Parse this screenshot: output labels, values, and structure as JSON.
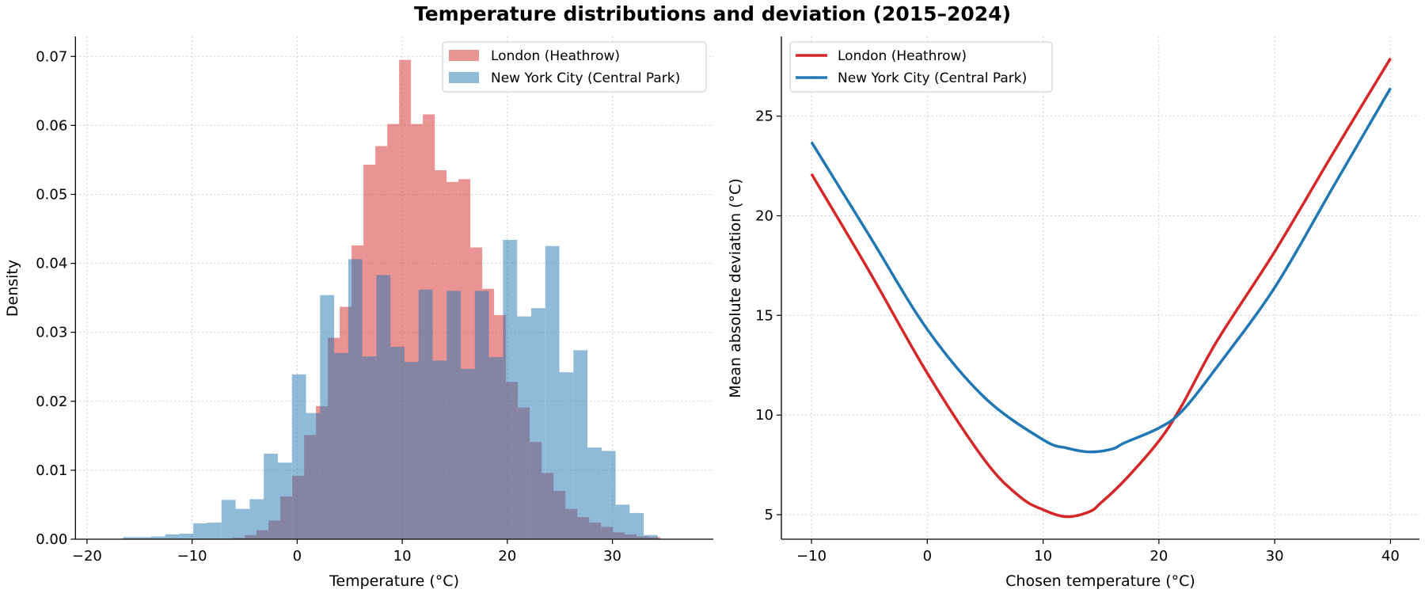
{
  "title": "Temperature distributions and deviation  (2015–2024)",
  "colors": {
    "london_hist": "#d62728",
    "nyc_hist": "#1f77b4",
    "london_line": "#d62728",
    "nyc_line": "#1f77b4"
  },
  "chart_data": [
    {
      "type": "bar",
      "subtype": "histogram",
      "xlabel": "Temperature (°C)",
      "ylabel": "Density",
      "xlim": [
        -21.1,
        39.6
      ],
      "ylim": [
        0,
        0.0729
      ],
      "xticks": [
        -20,
        -10,
        0,
        10,
        20,
        30
      ],
      "yticks": [
        "0.00",
        "0.01",
        "0.02",
        "0.03",
        "0.04",
        "0.05",
        "0.06",
        "0.07"
      ],
      "grid": true,
      "legend": "top-right",
      "opacity": 0.5,
      "series": [
        {
          "name": "London (Heathrow)",
          "bin_width": 1.131,
          "bin_starts": [
            -6.12,
            -4.99,
            -3.86,
            -2.73,
            -1.6,
            -0.47,
            0.66,
            1.79,
            2.92,
            4.05,
            5.18,
            6.31,
            7.44,
            8.57,
            9.7,
            10.83,
            11.96,
            13.09,
            14.22,
            15.35,
            16.48,
            17.61,
            18.74,
            19.87,
            21.0,
            22.14,
            23.27,
            24.4,
            25.53,
            26.66,
            27.79,
            28.92,
            30.05,
            31.18,
            32.31,
            33.44
          ],
          "values": [
            0.0002,
            0.0006,
            0.0013,
            0.0027,
            0.0062,
            0.0092,
            0.0151,
            0.0193,
            0.0292,
            0.0337,
            0.0426,
            0.0543,
            0.057,
            0.0602,
            0.0695,
            0.0602,
            0.0616,
            0.0535,
            0.0518,
            0.0522,
            0.0423,
            0.0363,
            0.0325,
            0.0228,
            0.0191,
            0.0141,
            0.0096,
            0.007,
            0.0044,
            0.0032,
            0.0024,
            0.0018,
            0.001,
            0.0007,
            0.0004,
            0.0003
          ]
        },
        {
          "name": "New York City (Central Park)",
          "bin_width": 1.339,
          "bin_starts": [
            -16.57,
            -15.23,
            -13.89,
            -12.55,
            -11.21,
            -9.88,
            -8.54,
            -7.2,
            -5.86,
            -4.52,
            -3.18,
            -1.84,
            -0.5,
            0.84,
            2.18,
            3.52,
            4.86,
            6.2,
            7.54,
            8.88,
            10.22,
            11.55,
            12.89,
            14.23,
            15.57,
            16.91,
            18.25,
            19.59,
            20.93,
            22.27,
            23.61,
            24.95,
            26.29,
            27.63,
            28.97,
            30.3,
            31.64,
            32.98
          ],
          "values": [
            0.0003,
            0.0003,
            0.0004,
            0.0007,
            0.0008,
            0.0023,
            0.0024,
            0.0057,
            0.0044,
            0.0058,
            0.0124,
            0.0111,
            0.0239,
            0.0183,
            0.0354,
            0.027,
            0.0406,
            0.0265,
            0.0383,
            0.0279,
            0.0257,
            0.0362,
            0.0259,
            0.036,
            0.0247,
            0.036,
            0.0264,
            0.0434,
            0.0323,
            0.0335,
            0.0425,
            0.0242,
            0.0274,
            0.0133,
            0.0128,
            0.005,
            0.0038,
            0.0006
          ]
        }
      ]
    },
    {
      "type": "line",
      "xlabel": "Chosen temperature (°C)",
      "ylabel": "Mean absolute deviation (°C)",
      "xlim": [
        -12.6,
        42.5
      ],
      "ylim": [
        3.77,
        29.0
      ],
      "xticks": [
        -10,
        0,
        10,
        20,
        30,
        40
      ],
      "yticks": [
        5,
        10,
        15,
        20,
        25
      ],
      "grid": true,
      "legend": "top-left",
      "series": [
        {
          "name": "London (Heathrow)",
          "x": [
            -10,
            -5,
            0,
            5,
            8,
            10,
            12,
            14,
            15,
            17,
            20,
            22,
            25,
            30,
            35,
            40
          ],
          "y": [
            22.1,
            17.2,
            12.1,
            7.7,
            5.9,
            5.25,
            4.9,
            5.15,
            5.6,
            6.7,
            8.7,
            10.5,
            13.7,
            18.2,
            23.1,
            27.9
          ]
        },
        {
          "name": "New York City (Central Park)",
          "x": [
            -10,
            -5,
            0,
            5,
            10,
            12,
            14,
            16,
            17,
            20,
            22,
            25,
            30,
            35,
            40
          ],
          "y": [
            23.7,
            19.0,
            14.3,
            10.85,
            8.76,
            8.35,
            8.15,
            8.3,
            8.6,
            9.35,
            10.2,
            12.4,
            16.4,
            21.4,
            26.4
          ]
        }
      ]
    }
  ]
}
